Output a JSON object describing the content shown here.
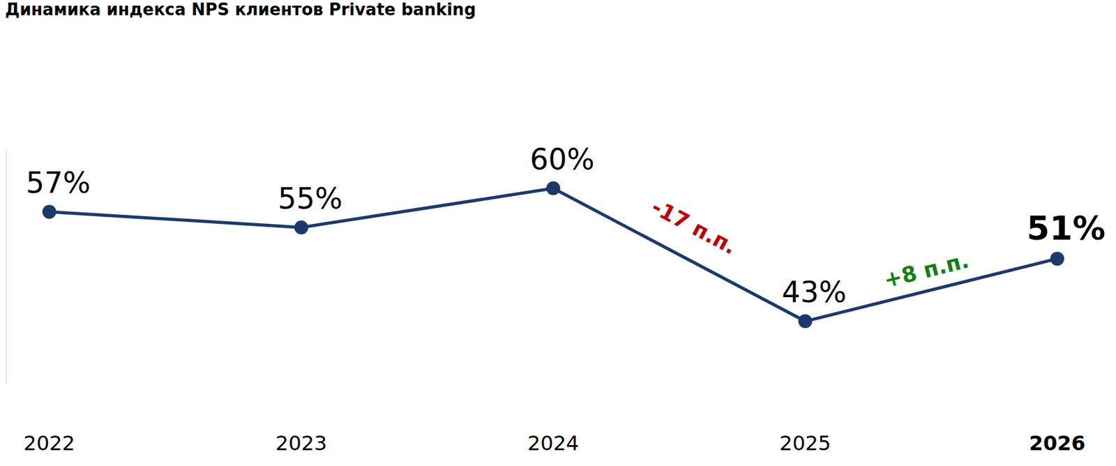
{
  "chart_data": {
    "type": "line",
    "title": "Динамика индекса NPS клиентов Private banking",
    "categories": [
      "2022",
      "2023",
      "2024",
      "2025",
      "2026"
    ],
    "values": [
      57,
      55,
      60,
      43,
      51
    ],
    "value_labels": [
      "57%",
      "55%",
      "60%",
      "43%",
      "51%"
    ],
    "color": "#1b3a6b",
    "marker": "circle",
    "data_labels": true,
    "ylim": [
      35,
      65
    ],
    "tick_labels": "x",
    "annotations": [
      {
        "text": "-17 п.п.",
        "from": "2024",
        "to": "2025",
        "color": "#c00000"
      },
      {
        "text": "+8 п.п.",
        "from": "2025",
        "to": "2026",
        "color": "#118011"
      }
    ]
  }
}
